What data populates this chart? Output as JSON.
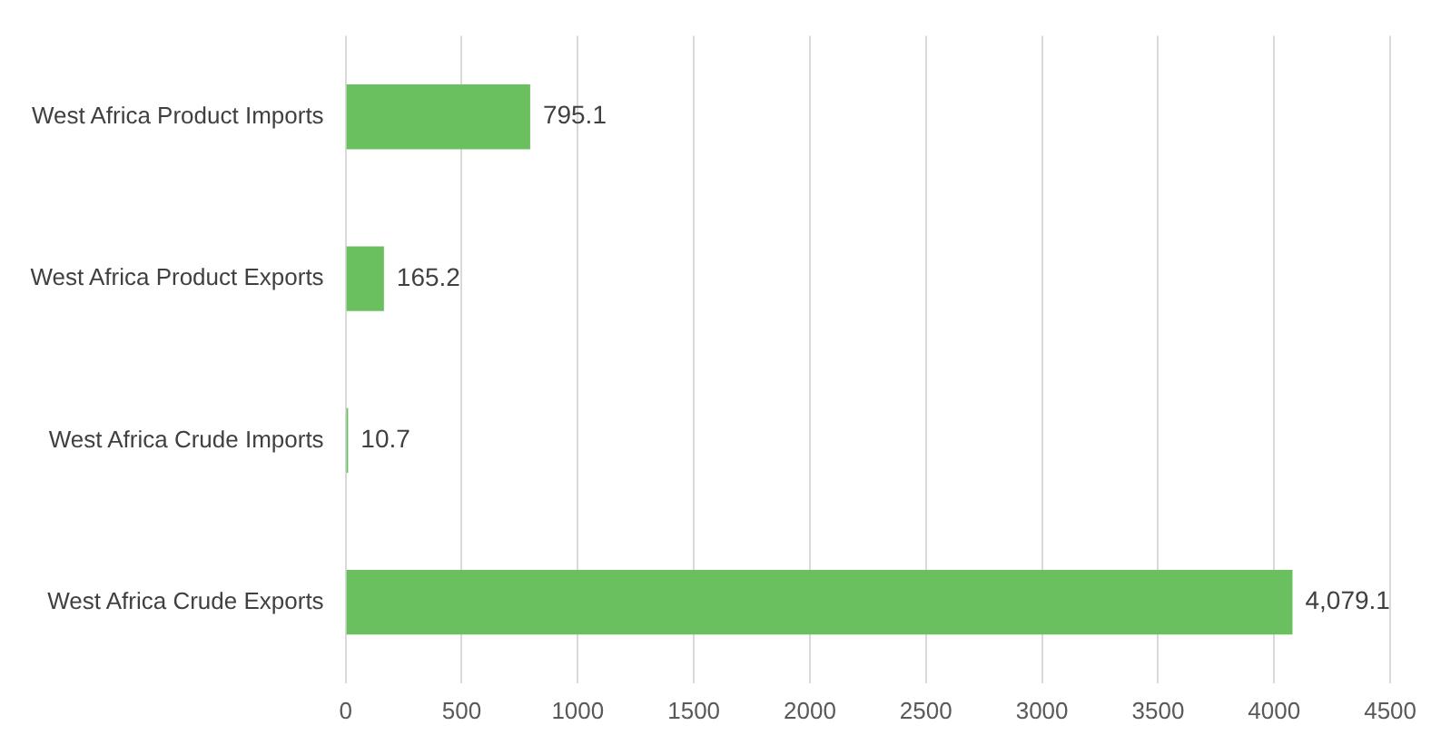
{
  "chart_data": {
    "type": "bar",
    "orientation": "horizontal",
    "categories": [
      "West Africa Product Imports",
      "West Africa Product Exports",
      "West Africa Crude Imports",
      "West Africa Crude Exports"
    ],
    "values": [
      795.1,
      165.2,
      10.7,
      4079.1
    ],
    "value_labels": [
      "795.1",
      "165.2",
      "10.7",
      "4,079.1"
    ],
    "color": "#6abf5e",
    "xlim": [
      0,
      4500
    ],
    "xticks": [
      0,
      500,
      1000,
      1500,
      2000,
      2500,
      3000,
      3500,
      4000,
      4500
    ],
    "grid": "x"
  }
}
